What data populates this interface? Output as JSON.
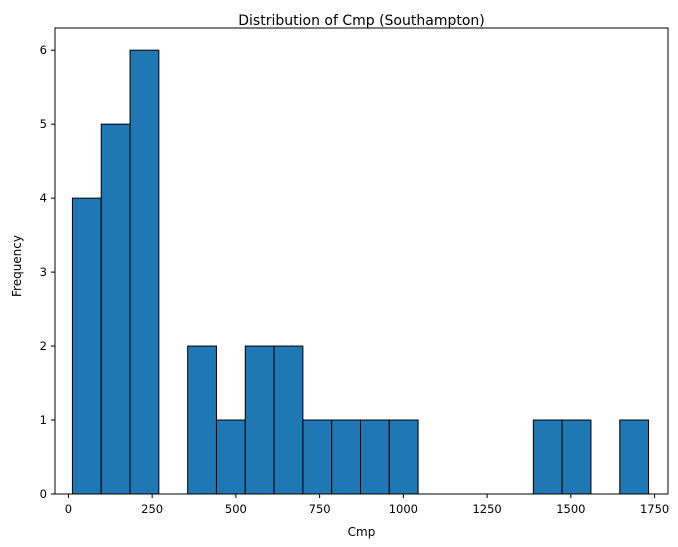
{
  "chart_data": {
    "type": "histogram",
    "title": "Distribution of Cmp (Southampton)",
    "xlabel": "Cmp",
    "ylabel": "Frequency",
    "xlim": [
      -40,
      1790
    ],
    "ylim": [
      0,
      6.3
    ],
    "xticks": [
      0,
      250,
      500,
      750,
      1000,
      1250,
      1500,
      1750
    ],
    "yticks": [
      0,
      1,
      2,
      3,
      4,
      5,
      6
    ],
    "grid": false,
    "bar_color": "#1f77b4",
    "edge_color": "#000000",
    "bins": [
      {
        "x0": 12,
        "x1": 98,
        "count": 4
      },
      {
        "x0": 98,
        "x1": 184,
        "count": 5
      },
      {
        "x0": 184,
        "x1": 270,
        "count": 6
      },
      {
        "x0": 270,
        "x1": 356,
        "count": 0
      },
      {
        "x0": 356,
        "x1": 442,
        "count": 2
      },
      {
        "x0": 442,
        "x1": 528,
        "count": 1
      },
      {
        "x0": 528,
        "x1": 614,
        "count": 2
      },
      {
        "x0": 614,
        "x1": 700,
        "count": 2
      },
      {
        "x0": 700,
        "x1": 786,
        "count": 1
      },
      {
        "x0": 786,
        "x1": 872,
        "count": 1
      },
      {
        "x0": 872,
        "x1": 958,
        "count": 1
      },
      {
        "x0": 958,
        "x1": 1044,
        "count": 1
      },
      {
        "x0": 1044,
        "x1": 1130,
        "count": 0
      },
      {
        "x0": 1130,
        "x1": 1216,
        "count": 0
      },
      {
        "x0": 1216,
        "x1": 1302,
        "count": 0
      },
      {
        "x0": 1302,
        "x1": 1388,
        "count": 0
      },
      {
        "x0": 1388,
        "x1": 1474,
        "count": 1
      },
      {
        "x0": 1474,
        "x1": 1560,
        "count": 1
      },
      {
        "x0": 1560,
        "x1": 1646,
        "count": 0
      },
      {
        "x0": 1646,
        "x1": 1732,
        "count": 1
      }
    ]
  }
}
